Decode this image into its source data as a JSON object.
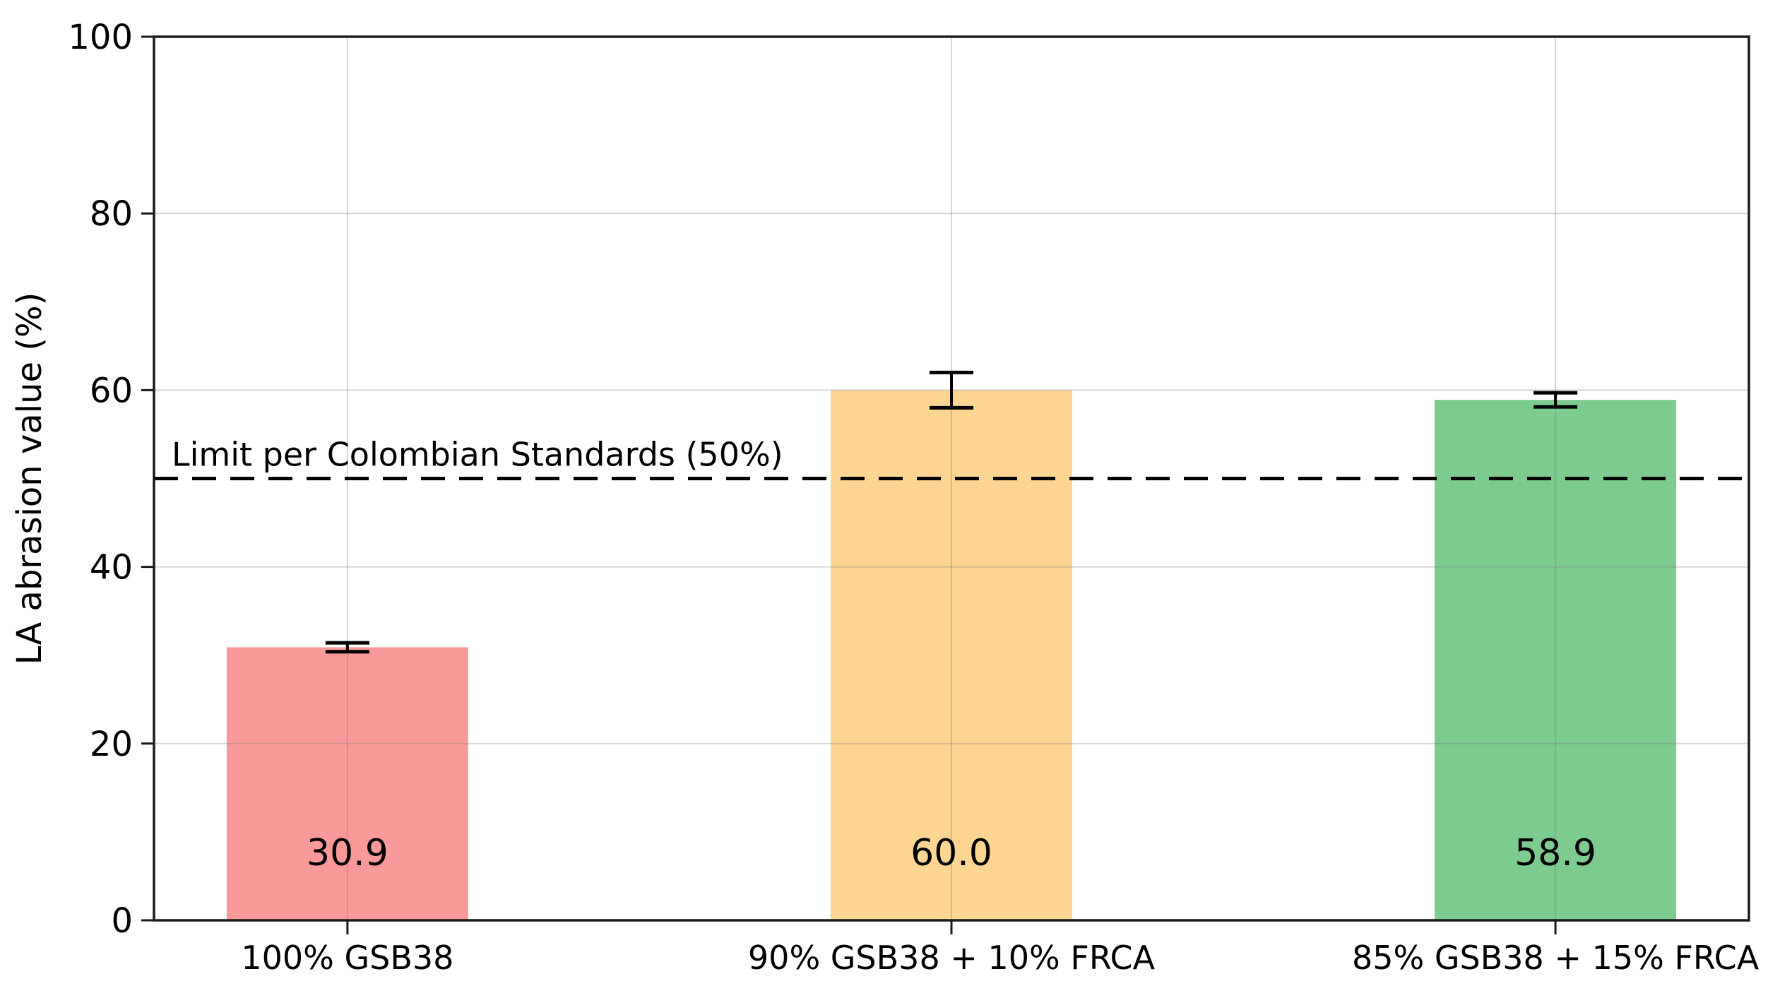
{
  "chart_data": {
    "type": "bar",
    "title": "",
    "xlabel": "",
    "ylabel": "LA abrasion value (%)",
    "ylim": [
      0,
      100
    ],
    "yticks": [
      0,
      20,
      40,
      60,
      80,
      100
    ],
    "grid": true,
    "legend": "none",
    "categories": [
      "100% GSB38",
      "90% GSB38 + 10% FRCA",
      "85% GSB38 + 15% FRCA"
    ],
    "values": [
      30.9,
      60.0,
      58.9
    ],
    "value_labels": [
      "30.9",
      "60.0",
      "58.9"
    ],
    "errors": [
      0.5,
      2.0,
      0.8
    ],
    "bar_colors": [
      "#FA9999",
      "#FCD592",
      "#7DCB8F"
    ],
    "reference_line": {
      "value": 50,
      "label": "Limit per Colombian Standards (50%)",
      "style": "dashed",
      "color": "#000000"
    },
    "colors": {
      "spine": "#1a1a1a",
      "grid": "rgba(120,120,120,0.30)",
      "error_bar": "#000000",
      "text": "#000000"
    }
  }
}
